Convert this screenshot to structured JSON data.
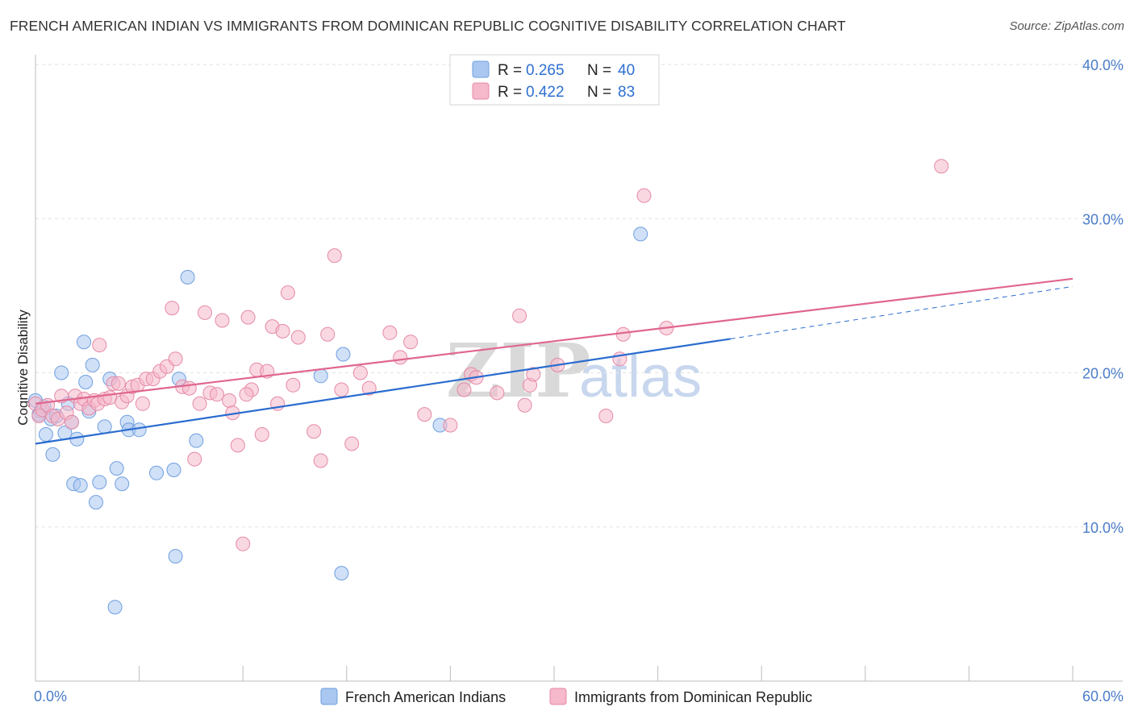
{
  "header": {
    "title": "FRENCH AMERICAN INDIAN VS IMMIGRANTS FROM DOMINICAN REPUBLIC COGNITIVE DISABILITY CORRELATION CHART",
    "source": "Source: ZipAtlas.com"
  },
  "watermark": {
    "zip": "ZIP",
    "atlas": "atlas"
  },
  "colors": {
    "blue_fill": "#a9c7f0",
    "blue_stroke": "#6f9fe0",
    "blue_line": "#2a6ccf",
    "pink_fill": "#f6b8cb",
    "pink_stroke": "#e58aa6",
    "pink_line": "#e0668f",
    "grid": "#e2e2e2",
    "tick_text": "#4a7cc9"
  },
  "legend": {
    "rows": [
      {
        "r_label": "R = ",
        "r_value": "0.265",
        "n_label": "N = ",
        "n_value": "40"
      },
      {
        "r_label": "R = ",
        "r_value": "0.422",
        "n_label": "N = ",
        "n_value": "83"
      }
    ]
  },
  "chart_data": {
    "type": "scatter",
    "title": "FRENCH AMERICAN INDIAN VS IMMIGRANTS FROM DOMINICAN REPUBLIC COGNITIVE DISABILITY CORRELATION CHART",
    "xlabel": "",
    "ylabel": "Cognitive Disability",
    "xlim": [
      0,
      60
    ],
    "ylim": [
      0,
      40
    ],
    "x_tick_labels": [
      "0.0%",
      "60.0%"
    ],
    "y_ticks": [
      10,
      20,
      30,
      40
    ],
    "y_tick_labels": [
      "10.0%",
      "20.0%",
      "30.0%",
      "40.0%"
    ],
    "grid": true,
    "series": [
      {
        "name": "French American Indians",
        "color": "blue",
        "r": 0.265,
        "n": 40,
        "trend": {
          "x0": 0,
          "y0": 15.4,
          "x1": 40.2,
          "y1": 22.2,
          "dash_x1": 60,
          "dash_y1": 25.6
        },
        "points": [
          [
            0.0,
            18.2
          ],
          [
            0.3,
            17.5
          ],
          [
            0.5,
            17.8
          ],
          [
            0.6,
            16.0
          ],
          [
            0.9,
            17.0
          ],
          [
            1.0,
            14.7
          ],
          [
            1.2,
            17.2
          ],
          [
            1.5,
            20.0
          ],
          [
            1.7,
            16.1
          ],
          [
            1.9,
            18.0
          ],
          [
            2.1,
            16.8
          ],
          [
            2.2,
            12.8
          ],
          [
            2.4,
            15.7
          ],
          [
            2.6,
            12.7
          ],
          [
            2.8,
            22.0
          ],
          [
            2.9,
            19.4
          ],
          [
            3.1,
            17.5
          ],
          [
            3.3,
            20.5
          ],
          [
            3.5,
            11.6
          ],
          [
            3.7,
            12.9
          ],
          [
            4.0,
            16.5
          ],
          [
            4.3,
            19.6
          ],
          [
            4.6,
            4.8
          ],
          [
            4.7,
            13.8
          ],
          [
            5.0,
            12.8
          ],
          [
            5.3,
            16.8
          ],
          [
            5.4,
            16.3
          ],
          [
            6.0,
            16.3
          ],
          [
            7.0,
            13.5
          ],
          [
            8.0,
            13.7
          ],
          [
            8.1,
            8.1
          ],
          [
            8.3,
            19.6
          ],
          [
            8.8,
            26.2
          ],
          [
            9.3,
            15.6
          ],
          [
            16.5,
            19.8
          ],
          [
            17.7,
            7.0
          ],
          [
            17.8,
            21.2
          ],
          [
            23.4,
            16.6
          ],
          [
            35.0,
            29.0
          ],
          [
            0.2,
            17.3
          ]
        ]
      },
      {
        "name": "Immigrants from Dominican Republic",
        "color": "pink",
        "r": 0.422,
        "n": 83,
        "trend": {
          "x0": 0,
          "y0": 18.0,
          "x1": 60,
          "y1": 26.1
        },
        "points": [
          [
            0.0,
            18.0
          ],
          [
            0.2,
            17.2
          ],
          [
            0.4,
            17.6
          ],
          [
            0.7,
            17.9
          ],
          [
            1.0,
            17.2
          ],
          [
            1.3,
            17.0
          ],
          [
            1.5,
            18.5
          ],
          [
            1.8,
            17.4
          ],
          [
            2.1,
            16.8
          ],
          [
            2.3,
            18.5
          ],
          [
            2.6,
            18.0
          ],
          [
            2.8,
            18.3
          ],
          [
            3.1,
            17.7
          ],
          [
            3.4,
            18.2
          ],
          [
            3.6,
            18.0
          ],
          [
            3.7,
            21.8
          ],
          [
            4.0,
            18.3
          ],
          [
            4.3,
            18.4
          ],
          [
            4.5,
            19.3
          ],
          [
            4.8,
            19.3
          ],
          [
            5.0,
            18.1
          ],
          [
            5.3,
            18.5
          ],
          [
            5.6,
            19.1
          ],
          [
            5.9,
            19.2
          ],
          [
            6.2,
            18.0
          ],
          [
            6.4,
            19.6
          ],
          [
            6.8,
            19.6
          ],
          [
            7.2,
            20.1
          ],
          [
            7.6,
            20.4
          ],
          [
            7.9,
            24.2
          ],
          [
            8.1,
            20.9
          ],
          [
            8.5,
            19.1
          ],
          [
            8.9,
            19.0
          ],
          [
            9.2,
            14.4
          ],
          [
            9.5,
            18.0
          ],
          [
            9.8,
            23.9
          ],
          [
            10.1,
            18.7
          ],
          [
            10.5,
            18.6
          ],
          [
            10.8,
            23.4
          ],
          [
            11.2,
            18.2
          ],
          [
            11.4,
            17.4
          ],
          [
            11.7,
            15.3
          ],
          [
            12.0,
            8.9
          ],
          [
            12.3,
            23.6
          ],
          [
            12.5,
            18.9
          ],
          [
            12.8,
            20.2
          ],
          [
            13.1,
            16.0
          ],
          [
            13.4,
            20.1
          ],
          [
            13.7,
            23.0
          ],
          [
            14.0,
            18.0
          ],
          [
            14.3,
            22.7
          ],
          [
            14.6,
            25.2
          ],
          [
            14.9,
            19.2
          ],
          [
            15.2,
            22.3
          ],
          [
            16.1,
            16.2
          ],
          [
            16.5,
            14.3
          ],
          [
            16.9,
            22.5
          ],
          [
            17.3,
            27.6
          ],
          [
            17.7,
            18.9
          ],
          [
            18.3,
            15.4
          ],
          [
            18.8,
            20.0
          ],
          [
            19.3,
            19.0
          ],
          [
            20.5,
            22.6
          ],
          [
            21.1,
            21.0
          ],
          [
            21.7,
            22.0
          ],
          [
            22.5,
            17.3
          ],
          [
            24.0,
            16.6
          ],
          [
            24.8,
            18.9
          ],
          [
            25.2,
            19.9
          ],
          [
            25.5,
            19.7
          ],
          [
            26.7,
            18.7
          ],
          [
            28.0,
            23.7
          ],
          [
            28.3,
            17.9
          ],
          [
            28.6,
            19.2
          ],
          [
            28.8,
            19.9
          ],
          [
            30.2,
            20.5
          ],
          [
            33.0,
            17.2
          ],
          [
            33.8,
            20.9
          ],
          [
            34.0,
            22.5
          ],
          [
            35.2,
            31.5
          ],
          [
            36.5,
            22.9
          ],
          [
            52.4,
            33.4
          ],
          [
            12.2,
            18.6
          ]
        ]
      }
    ]
  }
}
